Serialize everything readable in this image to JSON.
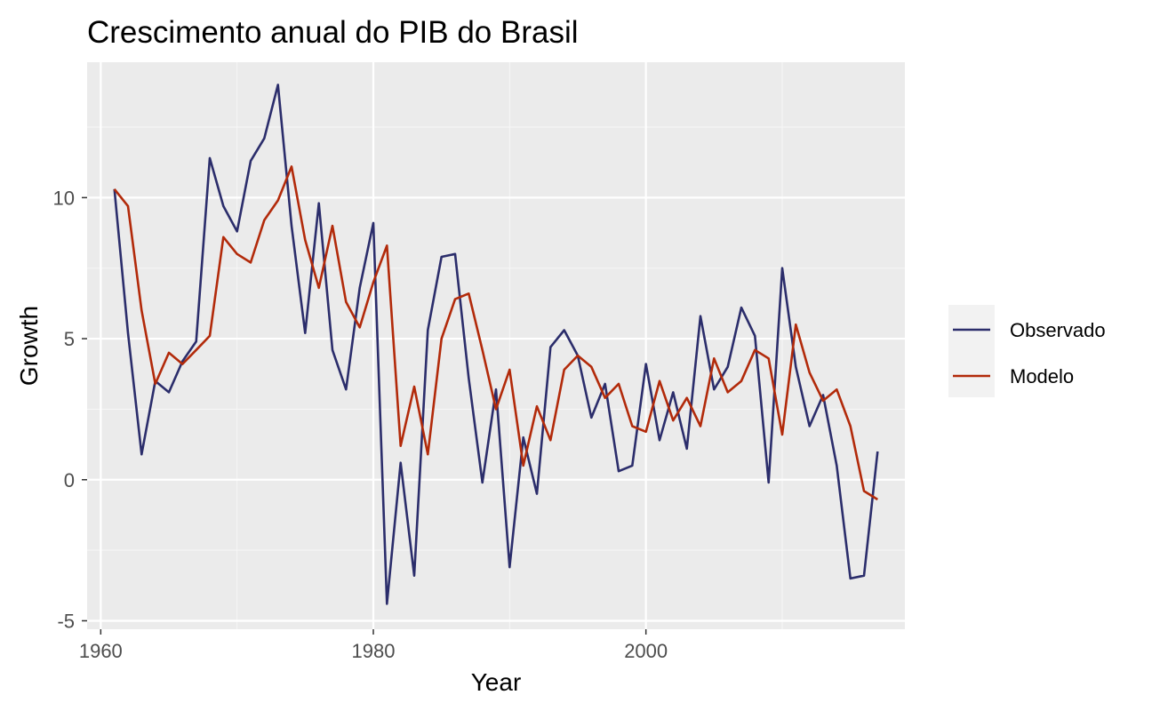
{
  "chart_data": {
    "type": "line",
    "title": "Crescimento anual do PIB do Brasil",
    "xlabel": "Year",
    "ylabel": "Growth",
    "xlim": [
      1959,
      2019
    ],
    "ylim": [
      -5.3,
      14.8
    ],
    "x_ticks": [
      1960,
      1980,
      2000
    ],
    "x_minor_ticks": [
      1970,
      1990,
      2010
    ],
    "y_ticks": [
      -5,
      0,
      5,
      10
    ],
    "y_minor_ticks": [
      -2.5,
      2.5,
      7.5,
      12.5
    ],
    "x_tick_labels": [
      "1960",
      "1980",
      "2000"
    ],
    "y_tick_labels": [
      "-5",
      "0",
      "5",
      "10"
    ],
    "grid": true,
    "background": "#ebebeb",
    "legend": {
      "placement": "right"
    },
    "x": [
      1961,
      1962,
      1963,
      1964,
      1965,
      1966,
      1967,
      1968,
      1969,
      1970,
      1971,
      1972,
      1973,
      1974,
      1975,
      1976,
      1977,
      1978,
      1979,
      1980,
      1981,
      1982,
      1983,
      1984,
      1985,
      1986,
      1987,
      1988,
      1989,
      1990,
      1991,
      1992,
      1993,
      1994,
      1995,
      1996,
      1997,
      1998,
      1999,
      2000,
      2001,
      2002,
      2003,
      2004,
      2005,
      2006,
      2007,
      2008,
      2009,
      2010,
      2011,
      2012,
      2013,
      2014,
      2015,
      2016,
      2017
    ],
    "series": [
      {
        "name": "Observado",
        "color": "#2b2d6b",
        "values": [
          10.3,
          5.2,
          0.9,
          3.5,
          3.1,
          4.2,
          4.9,
          11.4,
          9.7,
          8.8,
          11.3,
          12.1,
          14.0,
          9.0,
          5.2,
          9.8,
          4.6,
          3.2,
          6.8,
          9.1,
          -4.4,
          0.6,
          -3.4,
          5.3,
          7.9,
          8.0,
          3.6,
          -0.1,
          3.2,
          -3.1,
          1.5,
          -0.5,
          4.7,
          5.3,
          4.4,
          2.2,
          3.4,
          0.3,
          0.5,
          4.1,
          1.4,
          3.1,
          1.1,
          5.8,
          3.2,
          4.0,
          6.1,
          5.1,
          -0.1,
          7.5,
          4.0,
          1.9,
          3.0,
          0.5,
          -3.5,
          -3.4,
          1.0
        ]
      },
      {
        "name": "Modelo",
        "color": "#b22a0a",
        "values": [
          10.3,
          9.7,
          6.0,
          3.4,
          4.5,
          4.1,
          4.6,
          5.1,
          8.6,
          8.0,
          7.7,
          9.2,
          9.9,
          11.1,
          8.5,
          6.8,
          9.0,
          6.3,
          5.4,
          7.0,
          8.3,
          1.2,
          3.3,
          0.9,
          5.0,
          6.4,
          6.6,
          4.6,
          2.5,
          3.9,
          0.5,
          2.6,
          1.4,
          3.9,
          4.4,
          4.0,
          2.9,
          3.4,
          1.9,
          1.7,
          3.5,
          2.1,
          2.9,
          1.9,
          4.3,
          3.1,
          3.5,
          4.6,
          4.3,
          1.6,
          5.5,
          3.8,
          2.8,
          3.2,
          1.9,
          -0.4,
          -0.7
        ]
      }
    ]
  }
}
